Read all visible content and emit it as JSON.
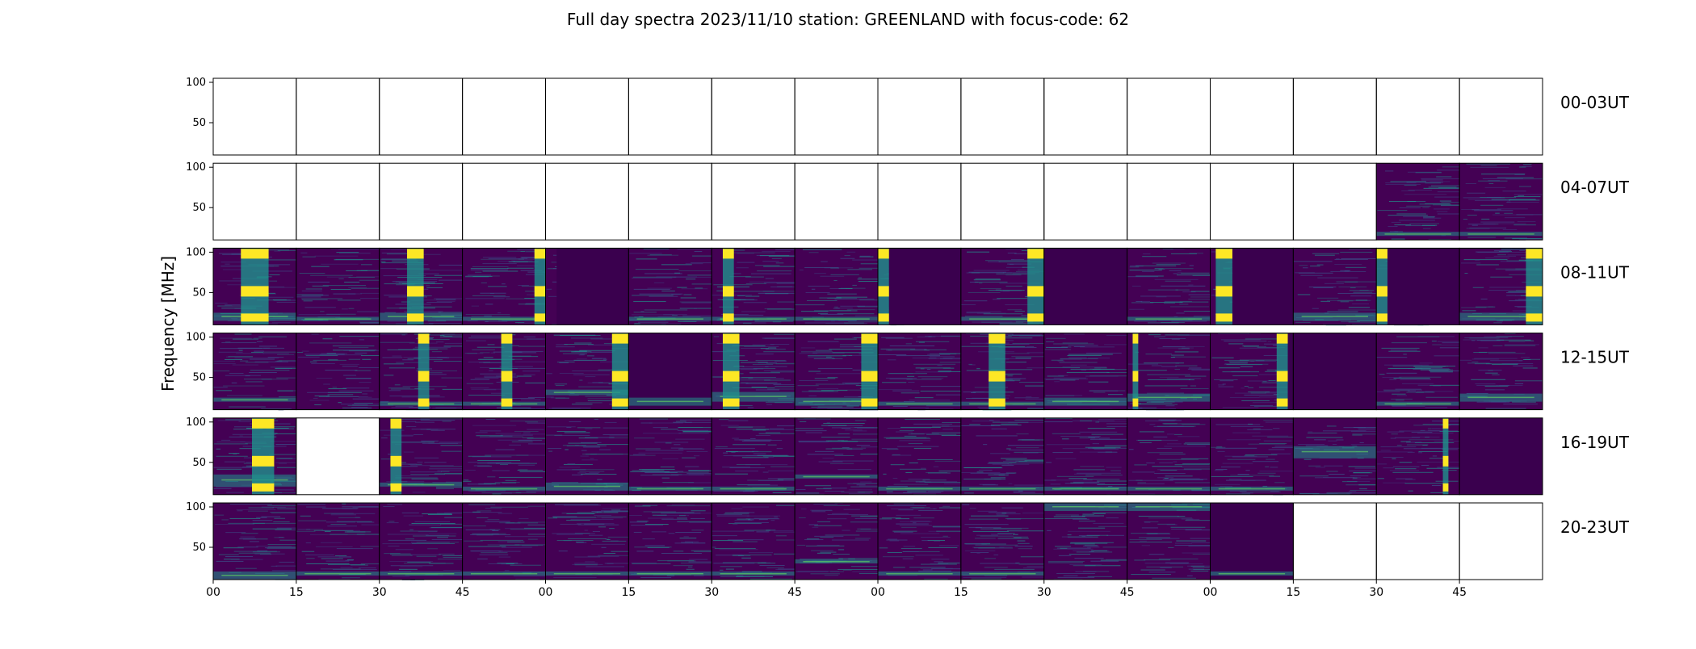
{
  "chart_data": {
    "type": "heatmap",
    "title": "Full day spectra 2023/11/10 station: GREENLAND with focus-code: 62",
    "ylabel": "Frequency [MHz]",
    "xlabel": "",
    "ylim": [
      10,
      105
    ],
    "y_ticks": [
      50,
      100
    ],
    "x_ticks": [
      "00",
      "15",
      "30",
      "45",
      "00",
      "15",
      "30",
      "45",
      "00",
      "15",
      "30",
      "45",
      "00",
      "15",
      "30",
      "45"
    ],
    "colormap": [
      "#440154",
      "#3b528b",
      "#21918c",
      "#5ec962",
      "#fde725"
    ],
    "panels_per_row": 16,
    "minutes_per_panel": 15,
    "rows": [
      {
        "label": "00-03UT",
        "panels": [
          {
            "has_data": false
          },
          {
            "has_data": false
          },
          {
            "has_data": false
          },
          {
            "has_data": false
          },
          {
            "has_data": false
          },
          {
            "has_data": false
          },
          {
            "has_data": false
          },
          {
            "has_data": false
          },
          {
            "has_data": false
          },
          {
            "has_data": false
          },
          {
            "has_data": false
          },
          {
            "has_data": false
          },
          {
            "has_data": false
          },
          {
            "has_data": false
          },
          {
            "has_data": false
          },
          {
            "has_data": false
          }
        ]
      },
      {
        "label": "04-07UT",
        "panels": [
          {
            "has_data": false
          },
          {
            "has_data": false
          },
          {
            "has_data": false
          },
          {
            "has_data": false
          },
          {
            "has_data": false
          },
          {
            "has_data": false
          },
          {
            "has_data": false
          },
          {
            "has_data": false
          },
          {
            "has_data": false
          },
          {
            "has_data": false
          },
          {
            "has_data": false
          },
          {
            "has_data": false
          },
          {
            "has_data": false
          },
          {
            "has_data": false
          },
          {
            "has_data": true,
            "bright_bands": [
              [
                15,
                20
              ]
            ]
          },
          {
            "has_data": true,
            "bright_bands": [
              [
                15,
                20
              ]
            ]
          }
        ]
      },
      {
        "label": "08-11UT",
        "panels": [
          {
            "has_data": true,
            "burst_minutes": [
              5,
              10
            ],
            "bright_bands": [
              [
                15,
                25
              ]
            ]
          },
          {
            "has_data": true,
            "bright_bands": [
              [
                15,
                20
              ]
            ]
          },
          {
            "has_data": true,
            "burst_minutes": [
              5,
              8
            ],
            "bright_bands": [
              [
                15,
                25
              ]
            ]
          },
          {
            "has_data": true,
            "burst_minutes": [
              13,
              15
            ],
            "bright_bands": [
              [
                15,
                20
              ]
            ]
          },
          {
            "has_data": true,
            "dark_minutes": [
              2,
              15
            ]
          },
          {
            "has_data": true,
            "bright_bands": [
              [
                15,
                20
              ]
            ]
          },
          {
            "has_data": true,
            "burst_minutes": [
              2,
              4
            ],
            "bright_bands": [
              [
                15,
                20
              ]
            ]
          },
          {
            "has_data": true,
            "bright_bands": [
              [
                15,
                20
              ]
            ]
          },
          {
            "has_data": true,
            "burst_minutes": [
              0,
              2
            ],
            "dark_minutes": [
              2,
              15
            ]
          },
          {
            "has_data": true,
            "burst_minutes": [
              12,
              15
            ],
            "bright_bands": [
              [
                15,
                20
              ]
            ]
          },
          {
            "has_data": true,
            "dark_minutes": [
              0,
              15
            ]
          },
          {
            "has_data": true,
            "bright_bands": [
              [
                15,
                20
              ]
            ]
          },
          {
            "has_data": true,
            "burst_minutes": [
              1,
              4
            ],
            "dark_minutes": [
              4,
              15
            ]
          },
          {
            "has_data": true,
            "bright_bands": [
              [
                15,
                25
              ]
            ]
          },
          {
            "has_data": true,
            "burst_minutes": [
              0,
              2
            ],
            "dark_minutes": [
              2,
              15
            ]
          },
          {
            "has_data": true,
            "burst_minutes": [
              12,
              15
            ],
            "bright_bands": [
              [
                15,
                25
              ]
            ]
          }
        ]
      },
      {
        "label": "12-15UT",
        "panels": [
          {
            "has_data": true,
            "bright_bands": [
              [
                20,
                25
              ]
            ]
          },
          {
            "has_data": true
          },
          {
            "has_data": true,
            "burst_minutes": [
              7,
              9
            ],
            "bright_bands": [
              [
                15,
                20
              ]
            ]
          },
          {
            "has_data": true,
            "burst_minutes": [
              7,
              9
            ],
            "bright_bands": [
              [
                15,
                20
              ]
            ]
          },
          {
            "has_data": true,
            "burst_minutes": [
              12,
              15
            ],
            "bright_bands": [
              [
                28,
                35
              ]
            ]
          },
          {
            "has_data": true,
            "dark_minutes": [
              0,
              15
            ],
            "bright_bands": [
              [
                15,
                25
              ]
            ]
          },
          {
            "has_data": true,
            "burst_minutes": [
              2,
              5
            ],
            "bright_bands": [
              [
                20,
                32
              ]
            ]
          },
          {
            "has_data": true,
            "burst_minutes": [
              12,
              15
            ],
            "bright_bands": [
              [
                15,
                25
              ]
            ]
          },
          {
            "has_data": true,
            "bright_bands": [
              [
                15,
                20
              ]
            ]
          },
          {
            "has_data": true,
            "burst_minutes": [
              5,
              8
            ],
            "bright_bands": [
              [
                15,
                20
              ]
            ]
          },
          {
            "has_data": true,
            "bright_bands": [
              [
                15,
                25
              ]
            ]
          },
          {
            "has_data": true,
            "burst_minutes": [
              1,
              2
            ],
            "bright_bands": [
              [
                20,
                30
              ]
            ]
          },
          {
            "has_data": true,
            "burst_minutes": [
              12,
              14
            ],
            "dark_minutes": [
              14,
              15
            ]
          },
          {
            "has_data": true,
            "dark_minutes": [
              0,
              15
            ]
          },
          {
            "has_data": true,
            "bright_bands": [
              [
                15,
                20
              ]
            ]
          },
          {
            "has_data": true,
            "bright_bands": [
              [
                20,
                30
              ]
            ]
          }
        ]
      },
      {
        "label": "16-19UT",
        "panels": [
          {
            "has_data": true,
            "burst_minutes": [
              7,
              11
            ],
            "bright_bands": [
              [
                20,
                35
              ]
            ]
          },
          {
            "has_data": false
          },
          {
            "has_data": true,
            "burst_minutes": [
              2,
              4
            ],
            "bright_bands": [
              [
                20,
                25
              ]
            ]
          },
          {
            "has_data": true,
            "bright_bands": [
              [
                15,
                20
              ]
            ]
          },
          {
            "has_data": true,
            "bright_bands": [
              [
                15,
                25
              ]
            ]
          },
          {
            "has_data": true,
            "bright_bands": [
              [
                15,
                20
              ]
            ]
          },
          {
            "has_data": true,
            "bright_bands": [
              [
                15,
                20
              ]
            ]
          },
          {
            "has_data": true,
            "bright_bands": [
              [
                30,
                35
              ]
            ]
          },
          {
            "has_data": true,
            "bright_bands": [
              [
                15,
                20
              ]
            ]
          },
          {
            "has_data": true,
            "bright_bands": [
              [
                15,
                20
              ]
            ]
          },
          {
            "has_data": true,
            "bright_bands": [
              [
                15,
                20
              ]
            ]
          },
          {
            "has_data": true,
            "bright_bands": [
              [
                15,
                20
              ]
            ]
          },
          {
            "has_data": true,
            "bright_bands": [
              [
                15,
                20
              ]
            ]
          },
          {
            "has_data": true,
            "bright_bands": [
              [
                55,
                70
              ]
            ]
          },
          {
            "has_data": true,
            "burst_minutes": [
              12,
              13
            ]
          },
          {
            "has_data": true,
            "dark_minutes": [
              0,
              15
            ]
          }
        ]
      },
      {
        "label": "20-23UT",
        "panels": [
          {
            "has_data": true,
            "bright_bands": [
              [
                10,
                20
              ]
            ]
          },
          {
            "has_data": true,
            "bright_bands": [
              [
                15,
                20
              ]
            ]
          },
          {
            "has_data": true,
            "bright_bands": [
              [
                15,
                20
              ]
            ]
          },
          {
            "has_data": true,
            "bright_bands": [
              [
                15,
                20
              ]
            ]
          },
          {
            "has_data": true,
            "bright_bands": [
              [
                15,
                20
              ]
            ]
          },
          {
            "has_data": true,
            "bright_bands": [
              [
                15,
                20
              ]
            ]
          },
          {
            "has_data": true,
            "bright_bands": [
              [
                15,
                20
              ]
            ]
          },
          {
            "has_data": true,
            "bright_bands": [
              [
                30,
                35
              ]
            ]
          },
          {
            "has_data": true,
            "bright_bands": [
              [
                15,
                20
              ]
            ]
          },
          {
            "has_data": true,
            "bright_bands": [
              [
                15,
                20
              ]
            ]
          },
          {
            "has_data": true,
            "bright_bands": [
              [
                95,
                105
              ]
            ]
          },
          {
            "has_data": true,
            "bright_bands": [
              [
                95,
                105
              ]
            ]
          },
          {
            "has_data": true,
            "dark_minutes": [
              0,
              15
            ],
            "bright_bands": [
              [
                15,
                20
              ]
            ]
          },
          {
            "has_data": false
          },
          {
            "has_data": false
          },
          {
            "has_data": false
          }
        ]
      }
    ]
  }
}
